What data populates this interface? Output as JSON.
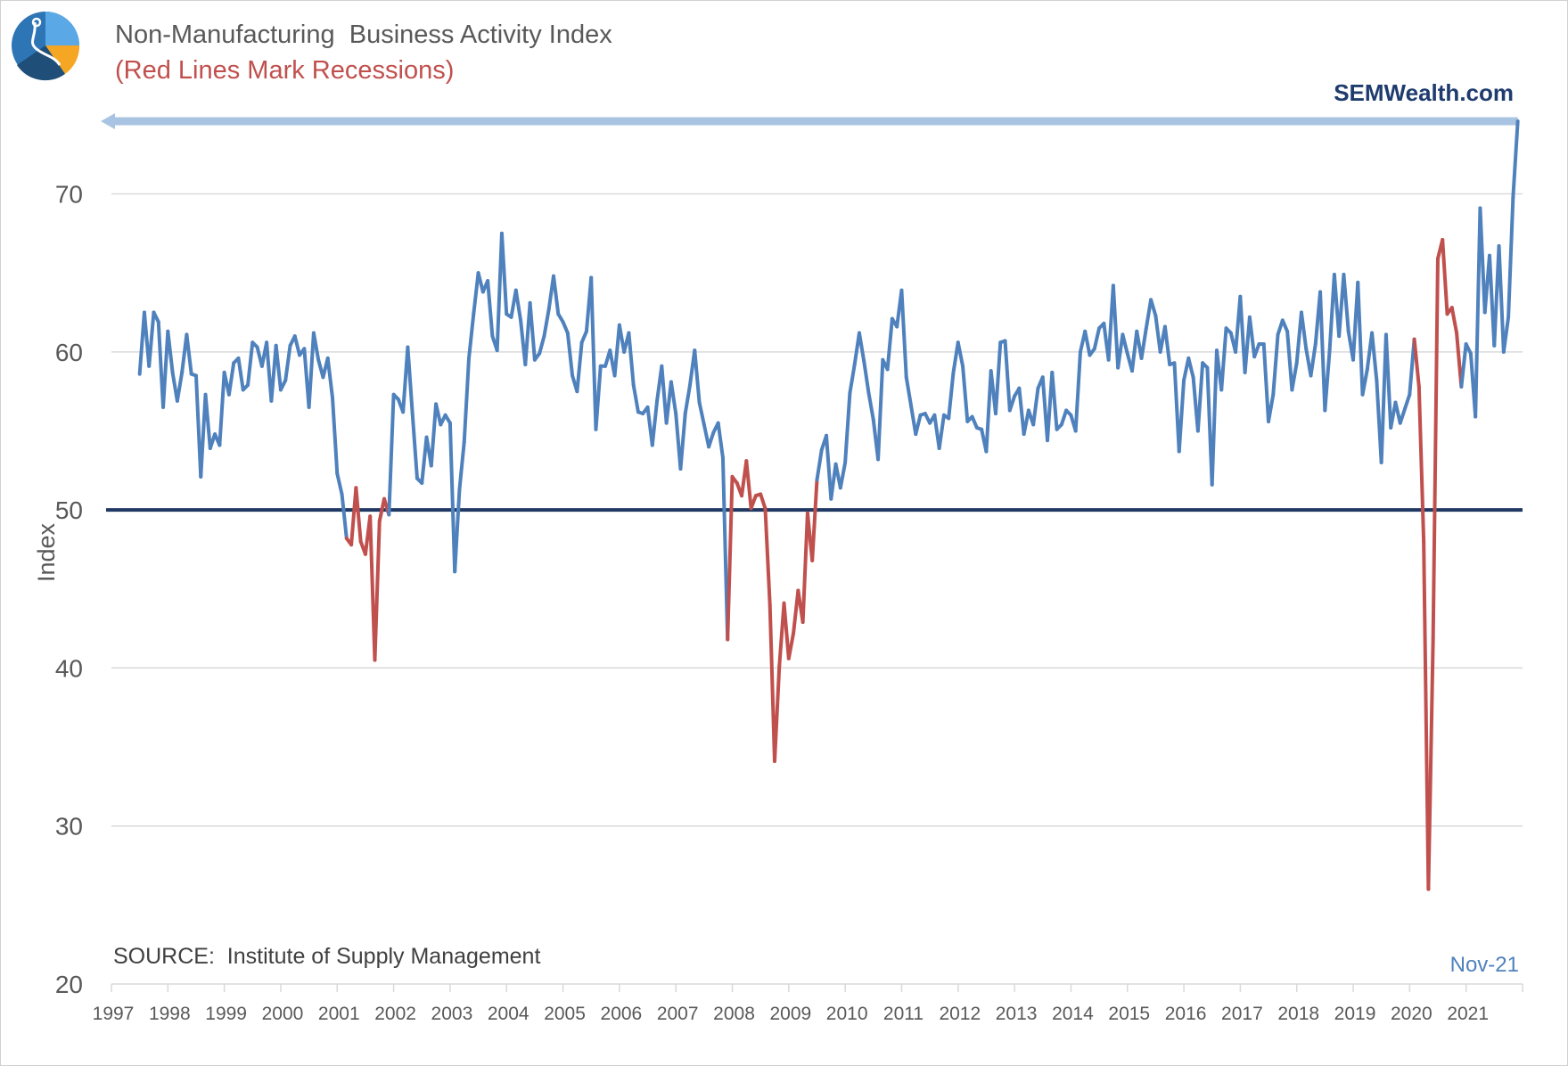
{
  "title": "Non-Manufacturing  Business Activity Index",
  "subtitle": "(Red Lines Mark Recessions)",
  "brand": "SEMWealth.com",
  "source": "SOURCE:  Institute of Supply Management",
  "date_stamp": "Nov-21",
  "colors": {
    "expansion": "#4f81bd",
    "recession": "#c0504d",
    "threshold": "#1f3864",
    "arrow": "#a9c4e2",
    "grid": "#d9d9d9",
    "axis_text": "#595959"
  },
  "chart_data": {
    "type": "line",
    "title": "Non-Manufacturing  Business Activity Index",
    "ylabel": "Index",
    "xlabel": "",
    "ylim": [
      20,
      74.6
    ],
    "xlim": [
      1997.0,
      2022.0
    ],
    "yticks": [
      20,
      30,
      40,
      50,
      60,
      70
    ],
    "xticks": [
      "1997",
      "1998",
      "1999",
      "2000",
      "2001",
      "2002",
      "2003",
      "2004",
      "2005",
      "2006",
      "2007",
      "2008",
      "2009",
      "2010",
      "2011",
      "2012",
      "2013",
      "2014",
      "2015",
      "2016",
      "2017",
      "2018",
      "2019",
      "2020",
      "2021"
    ],
    "reference_line": {
      "y": 50,
      "label": ""
    },
    "recession_periods": [
      [
        2001.17,
        2001.92
      ],
      [
        2007.92,
        2009.5
      ],
      [
        2020.1,
        2020.4
      ],
      [
        2020.4,
        2020.7
      ],
      [
        2020.7,
        2020.95
      ]
    ],
    "peak_arrow": {
      "y": 74.6
    },
    "series": [
      {
        "name": "Business Activity Index",
        "start": 1997.5,
        "step": 0.08333,
        "values": [
          58.6,
          62.5,
          59.1,
          62.5,
          61.9,
          56.5,
          61.3,
          58.7,
          56.9,
          58.7,
          61.1,
          58.6,
          58.5,
          52.1,
          57.3,
          53.9,
          54.8,
          54.1,
          58.7,
          57.3,
          59.3,
          59.6,
          57.6,
          57.9,
          60.6,
          60.3,
          59.1,
          60.6,
          56.9,
          60.4,
          57.6,
          58.2,
          60.4,
          61.0,
          59.8,
          60.2,
          56.5,
          61.2,
          59.5,
          58.4,
          59.6,
          57.1,
          52.3,
          51.0,
          48.2,
          47.8,
          51.4,
          48.0,
          47.2,
          49.6,
          40.5,
          49.3,
          50.7,
          49.7,
          57.3,
          57.0,
          56.2,
          60.3,
          56.1,
          52.0,
          51.7,
          54.6,
          52.8,
          56.7,
          55.4,
          56.0,
          55.5,
          46.1,
          51.3,
          54.3,
          59.6,
          62.4,
          65.0,
          63.8,
          64.5,
          61.0,
          60.1,
          67.5,
          62.4,
          62.2,
          63.9,
          62.0,
          59.2,
          63.1,
          59.5,
          59.9,
          61.0,
          62.7,
          64.8,
          62.4,
          61.9,
          61.2,
          58.5,
          57.5,
          60.6,
          61.3,
          64.7,
          55.1,
          59.1,
          59.1,
          60.1,
          58.5,
          61.7,
          60.0,
          61.2,
          57.9,
          56.2,
          56.1,
          56.5,
          54.1,
          56.9,
          59.1,
          55.5,
          58.1,
          56.1,
          52.6,
          56.1,
          57.9,
          60.1,
          56.8,
          55.4,
          54.0,
          54.9,
          55.5,
          53.3,
          41.8,
          52.1,
          51.7,
          50.9,
          53.1,
          50.1,
          50.9,
          51.0,
          50.1,
          44.0,
          34.1,
          40.1,
          44.1,
          40.6,
          42.2,
          44.9,
          42.9,
          49.8,
          46.8,
          51.9,
          53.8,
          54.7,
          50.7,
          52.9,
          51.4,
          53.0,
          57.4,
          59.2,
          61.2,
          59.4,
          57.4,
          55.7,
          53.2,
          59.5,
          58.9,
          62.1,
          61.6,
          63.9,
          58.4,
          56.6,
          54.8,
          56.0,
          56.1,
          55.5,
          56.0,
          53.9,
          56.0,
          55.8,
          58.7,
          60.6,
          59.1,
          55.6,
          55.9,
          55.2,
          55.1,
          53.7,
          58.8,
          56.1,
          60.6,
          60.7,
          56.3,
          57.2,
          57.7,
          54.8,
          56.3,
          55.4,
          57.7,
          58.4,
          54.4,
          58.7,
          55.1,
          55.4,
          56.3,
          56.0,
          55.0,
          60.0,
          61.3,
          59.8,
          60.2,
          61.5,
          61.8,
          59.5,
          64.2,
          59.0,
          61.1,
          59.9,
          58.8,
          61.3,
          59.6,
          61.5,
          63.3,
          62.3,
          60.0,
          61.6,
          59.2,
          59.3,
          53.7,
          58.2,
          59.6,
          58.4,
          55.0,
          59.3,
          59.0,
          51.6,
          60.1,
          57.6,
          61.5,
          61.2,
          60.0,
          63.5,
          58.7,
          62.2,
          59.7,
          60.5,
          60.5,
          55.6,
          57.3,
          61.1,
          62.0,
          61.3,
          57.6,
          59.3,
          62.5,
          60.2,
          58.5,
          60.5,
          63.8,
          56.3,
          60.1,
          64.9,
          61.0,
          64.9,
          61.3,
          59.5,
          64.4,
          57.3,
          58.9,
          61.2,
          58.2,
          53.0,
          61.1,
          55.2,
          56.8,
          55.5,
          56.4,
          57.3,
          60.8,
          57.8,
          48.0,
          26.0,
          41.9,
          65.9,
          67.1,
          62.4,
          62.8,
          61.2,
          57.8,
          60.5,
          59.9,
          55.9,
          69.1,
          62.5,
          66.1,
          60.4,
          66.7,
          60.0,
          62.2,
          69.8,
          74.6
        ]
      }
    ]
  }
}
